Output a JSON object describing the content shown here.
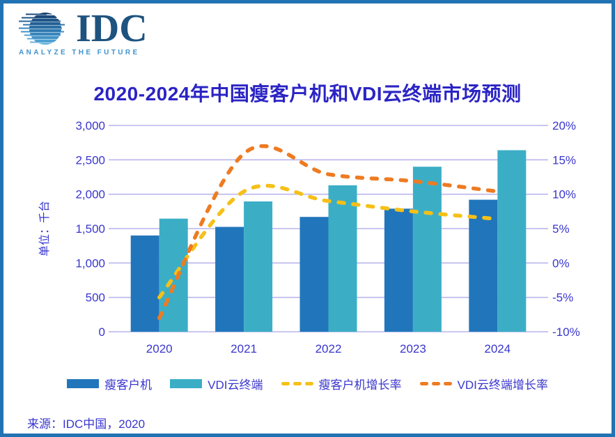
{
  "logo": {
    "brand": "IDC",
    "tagline": "ANALYZE THE FUTURE"
  },
  "title": "2020-2024年中国瘦客户机和VDI云终端市场预测",
  "source": "来源：IDC中国，2020",
  "colors": {
    "frame_border": "#2173B3",
    "title_text": "#2B24C4",
    "chart_text": "#3936CE",
    "gridline": "#B9B6EC",
    "thin_client_bar": "#2176BB",
    "vdi_bar": "#3BAEC6",
    "thin_client_growth_line": "#F5C018",
    "vdi_growth_line": "#EE7B22",
    "logo_navy": "#1E537F",
    "logo_light_blue": "#3E93CF"
  },
  "chart_data": {
    "type": "combo-bar-line",
    "title": "2020-2024年中国瘦客户机和VDI云终端市场预测",
    "categories": [
      "2020",
      "2021",
      "2022",
      "2023",
      "2024"
    ],
    "series": [
      {
        "name": "瘦客户机",
        "slug": "thin-client",
        "type": "bar",
        "axis": "left",
        "color": "#2176BB",
        "values": [
          1400,
          1525,
          1670,
          1790,
          1920
        ]
      },
      {
        "name": "VDI云终端",
        "slug": "vdi-cloud-terminal",
        "type": "bar",
        "axis": "left",
        "color": "#3BAEC6",
        "values": [
          1645,
          1895,
          2130,
          2400,
          2640
        ]
      },
      {
        "name": "瘦客户机增长率",
        "slug": "thin-client-growth-rate",
        "type": "dashed-line",
        "axis": "right",
        "color": "#F5C018",
        "values": [
          -5.0,
          10.4,
          9.0,
          7.5,
          6.4
        ]
      },
      {
        "name": "VDI云终端增长率",
        "slug": "vdi-growth-rate",
        "type": "dashed-line",
        "axis": "right",
        "color": "#EE7B22",
        "values": [
          -8.0,
          15.9,
          12.9,
          11.9,
          10.4
        ]
      }
    ],
    "left_axis": {
      "title": "单位：千台",
      "min": 0,
      "max": 3000,
      "step": 500,
      "tick_labels": [
        "0",
        "500",
        "1,000",
        "1,500",
        "2,000",
        "2,500",
        "3,000"
      ]
    },
    "right_axis": {
      "min": -10,
      "max": 20,
      "step": 5,
      "tick_labels": [
        "-10%",
        "-5%",
        "0%",
        "5%",
        "10%",
        "15%",
        "20%"
      ]
    },
    "grid": true,
    "legend_position": "bottom"
  }
}
